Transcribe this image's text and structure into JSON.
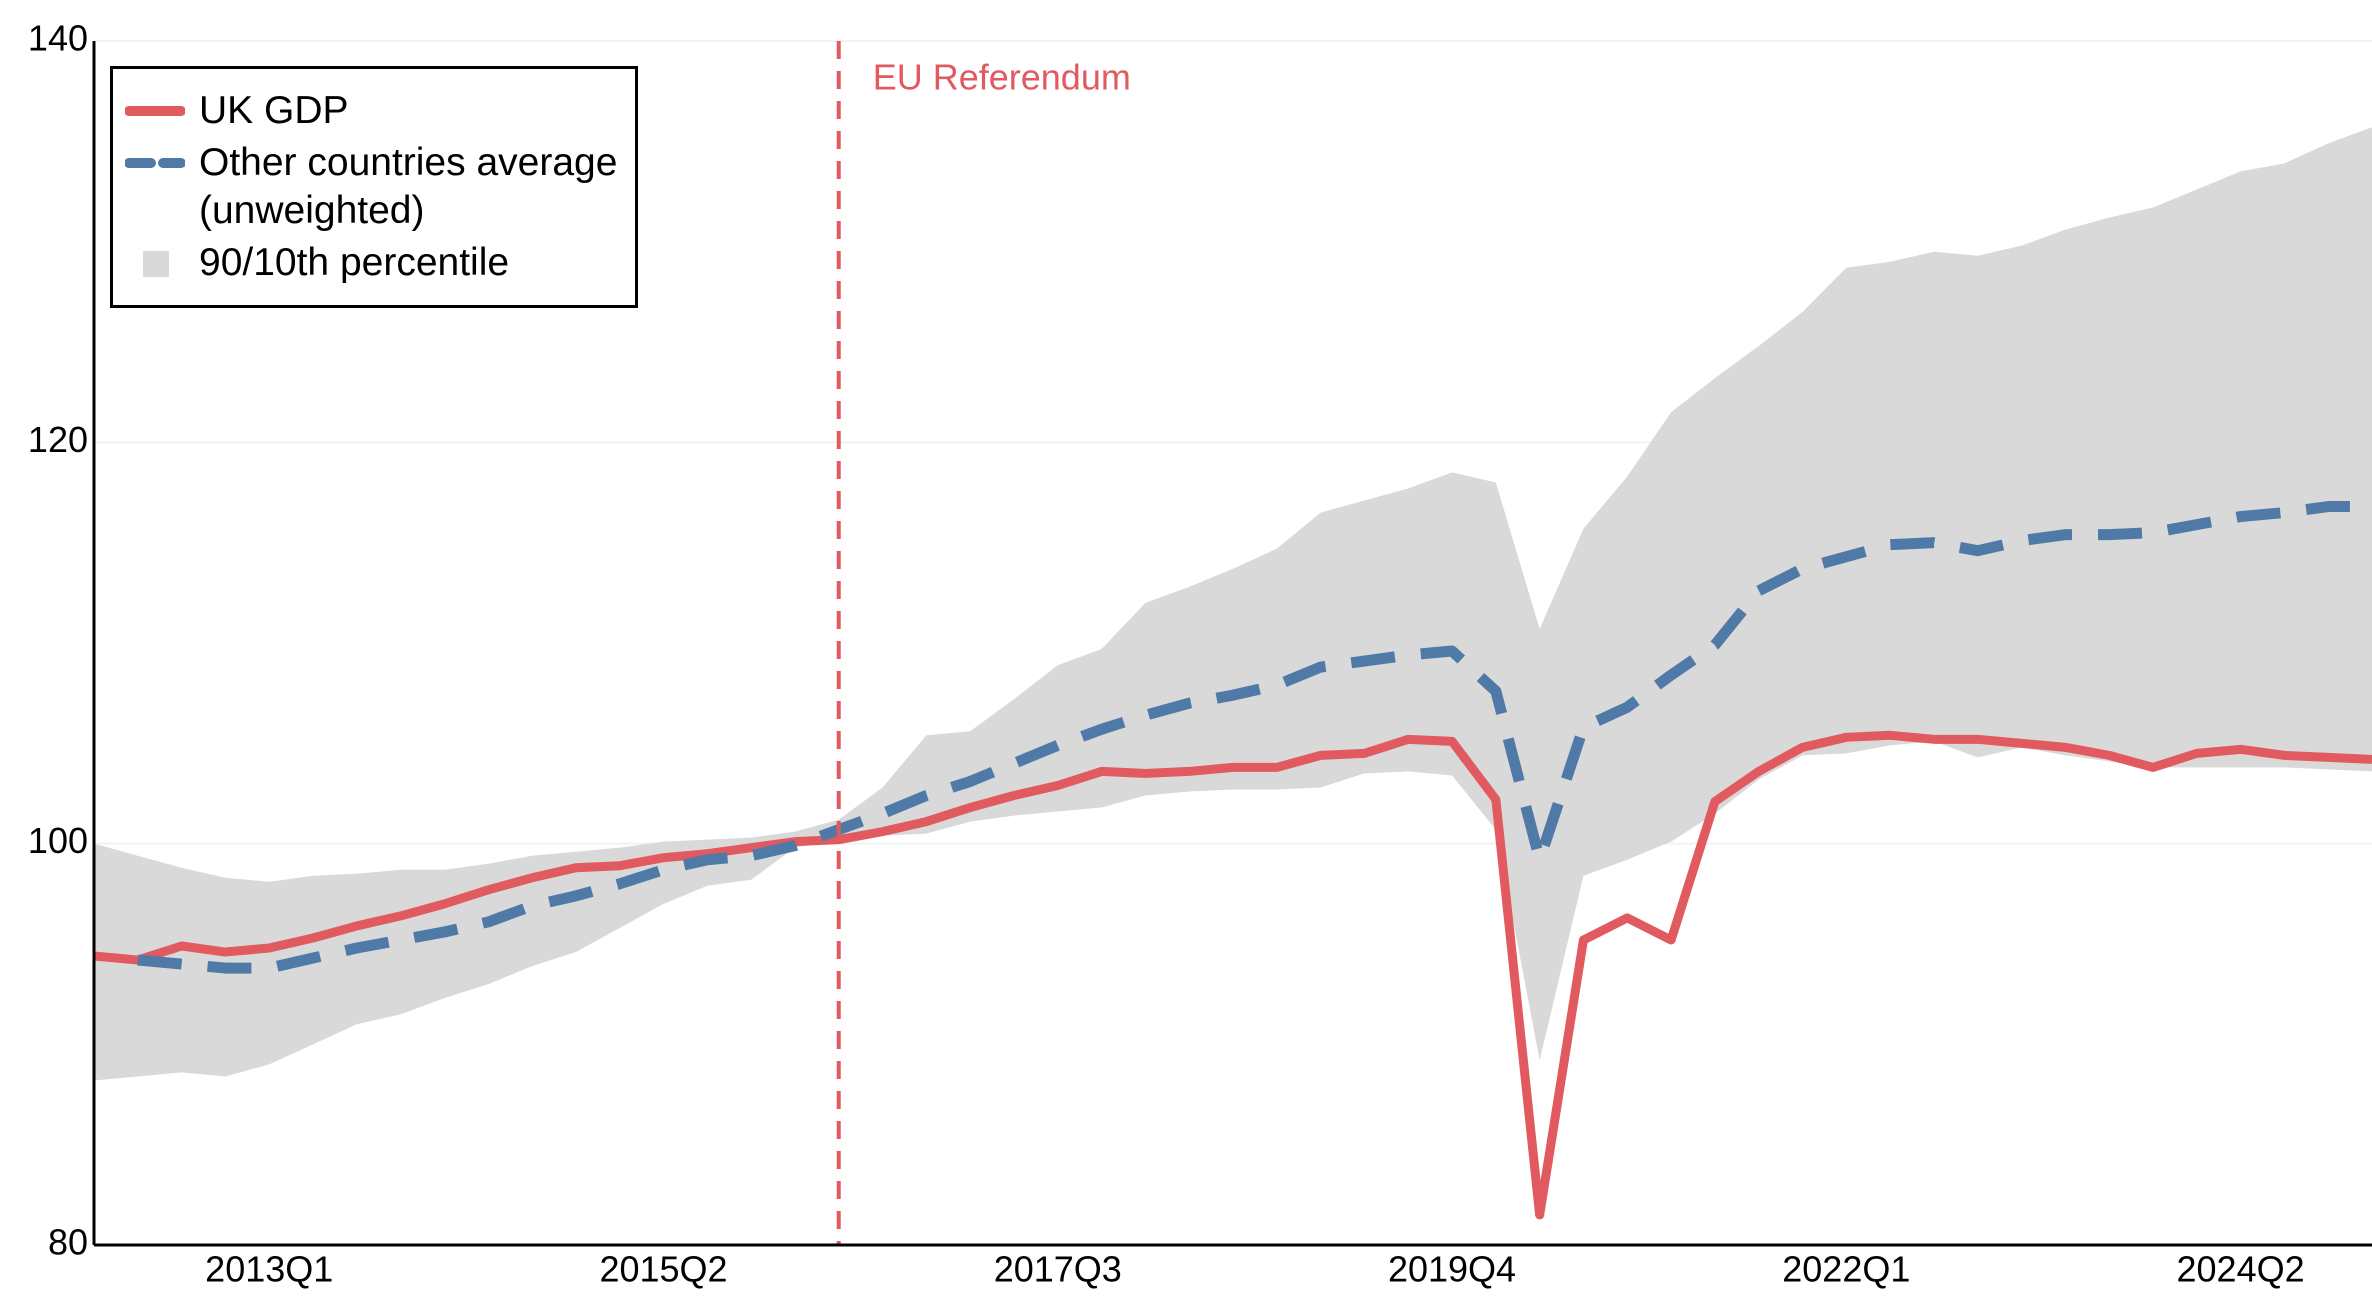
{
  "chart_data": {
    "type": "line",
    "categories": [
      null,
      null,
      null,
      null,
      "2013Q1",
      null,
      null,
      null,
      null,
      null,
      null,
      null,
      null,
      "2015Q2",
      null,
      null,
      null,
      null,
      null,
      null,
      null,
      null,
      "2017Q3",
      null,
      null,
      null,
      null,
      null,
      null,
      null,
      null,
      "2019Q4",
      null,
      null,
      null,
      null,
      null,
      null,
      null,
      null,
      "2022Q1",
      null,
      null,
      null,
      null,
      null,
      null,
      null,
      null,
      "2024Q2",
      null,
      null,
      null
    ],
    "series": [
      {
        "name": "UK GDP",
        "color": "#e05a5f",
        "style": "solid",
        "values": [
          94.4,
          94.2,
          94.9,
          94.6,
          94.8,
          95.3,
          95.9,
          96.4,
          97.0,
          97.7,
          98.3,
          98.8,
          98.9,
          99.3,
          99.5,
          99.8,
          100.1,
          100.2,
          100.6,
          101.1,
          101.8,
          102.4,
          102.9,
          103.6,
          103.5,
          103.6,
          103.8,
          103.8,
          104.4,
          104.5,
          105.2,
          105.1,
          102.2,
          81.5,
          95.2,
          96.3,
          95.2,
          102.1,
          103.6,
          104.8,
          105.3,
          105.4,
          105.2,
          105.2,
          105.0,
          104.8,
          104.4,
          103.8,
          104.5,
          104.7,
          104.4,
          104.3,
          104.2
        ]
      },
      {
        "name": "Other countries average (unweighted)",
        "color": "#4f7aa8",
        "style": "dashed",
        "values": [
          null,
          94.2,
          94.0,
          93.8,
          93.8,
          94.3,
          94.8,
          95.2,
          95.6,
          96.1,
          96.9,
          97.4,
          98.0,
          98.7,
          99.2,
          99.4,
          99.9,
          100.7,
          101.5,
          102.4,
          103.1,
          104.0,
          104.9,
          105.7,
          106.4,
          107.0,
          107.4,
          107.9,
          108.8,
          109.1,
          109.4,
          109.6,
          107.6,
          99.2,
          105.8,
          106.8,
          108.4,
          109.9,
          112.6,
          113.7,
          114.3,
          114.9,
          115.0,
          114.6,
          115.1,
          115.4,
          115.4,
          115.5,
          115.9,
          116.3,
          116.5,
          116.8,
          116.8
        ]
      },
      {
        "name": "90/10th percentile",
        "color": "#d9d9d9",
        "style": "band",
        "upper": [
          100.0,
          99.4,
          98.8,
          98.3,
          98.1,
          98.4,
          98.5,
          98.7,
          98.7,
          99.0,
          99.4,
          99.6,
          99.8,
          100.1,
          100.2,
          100.3,
          100.6,
          101.2,
          102.8,
          105.4,
          105.6,
          107.2,
          108.9,
          109.7,
          112.0,
          112.8,
          113.7,
          114.7,
          116.5,
          117.1,
          117.7,
          118.5,
          118.0,
          110.7,
          115.7,
          118.3,
          121.5,
          123.2,
          124.8,
          126.5,
          128.7,
          129.0,
          129.5,
          129.3,
          129.8,
          130.6,
          131.2,
          131.7,
          132.6,
          133.5,
          133.9,
          134.9,
          135.7
        ],
        "lower": [
          88.2,
          88.4,
          88.6,
          88.4,
          89.0,
          90.0,
          91.0,
          91.5,
          92.3,
          93.0,
          93.9,
          94.6,
          95.8,
          97.0,
          97.9,
          98.2,
          99.8,
          100.2,
          100.4,
          100.5,
          101.1,
          101.4,
          101.6,
          101.8,
          102.4,
          102.6,
          102.7,
          102.7,
          102.8,
          103.5,
          103.6,
          103.4,
          100.7,
          89.2,
          98.4,
          99.2,
          100.1,
          101.5,
          103.2,
          104.4,
          104.5,
          104.9,
          105.1,
          104.3,
          104.8,
          104.4,
          104.1,
          103.8,
          103.8,
          103.8,
          103.8,
          103.7,
          103.6
        ]
      }
    ],
    "annotation": {
      "text": "EU Referendum",
      "category_index": 17,
      "color": "#e05a5f"
    },
    "ylim": [
      80,
      140
    ],
    "yticks": [
      80,
      100,
      120,
      140
    ],
    "grid": true,
    "legend": "top-left"
  }
}
